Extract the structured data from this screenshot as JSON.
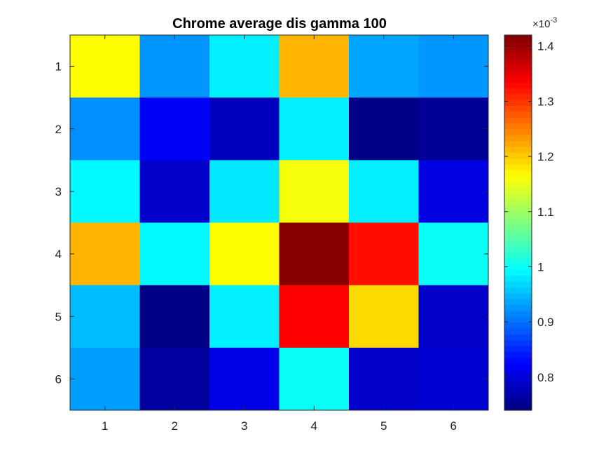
{
  "chart_data": {
    "type": "heatmap",
    "title": "Chrome average dis gamma 100",
    "x_categories": [
      "1",
      "2",
      "3",
      "4",
      "5",
      "6"
    ],
    "y_categories": [
      "1",
      "2",
      "3",
      "4",
      "5",
      "6"
    ],
    "values": [
      [
        1.165,
        0.925,
        0.985,
        1.215,
        0.935,
        0.925
      ],
      [
        0.92,
        0.82,
        0.78,
        0.985,
        0.745,
        0.755
      ],
      [
        0.99,
        0.79,
        0.98,
        1.16,
        0.985,
        0.805
      ],
      [
        1.215,
        0.99,
        1.165,
        1.415,
        1.325,
        1.0
      ],
      [
        0.95,
        0.745,
        0.985,
        1.335,
        1.19,
        0.79
      ],
      [
        0.93,
        0.76,
        0.81,
        1.0,
        0.79,
        0.795
      ]
    ],
    "value_multiplier": "×10^-3",
    "colormap": "jet",
    "clim": [
      0.74,
      1.42
    ],
    "colorbar": {
      "ticks": [
        0.8,
        0.9,
        1,
        1.1,
        1.2,
        1.3,
        1.4
      ],
      "tick_labels": [
        "0.8",
        "0.9",
        "1",
        "1.1",
        "1.2",
        "1.3",
        "1.4"
      ],
      "exponent_base": "×10",
      "exponent_power": "-3",
      "placement": "right"
    },
    "grid": false
  }
}
